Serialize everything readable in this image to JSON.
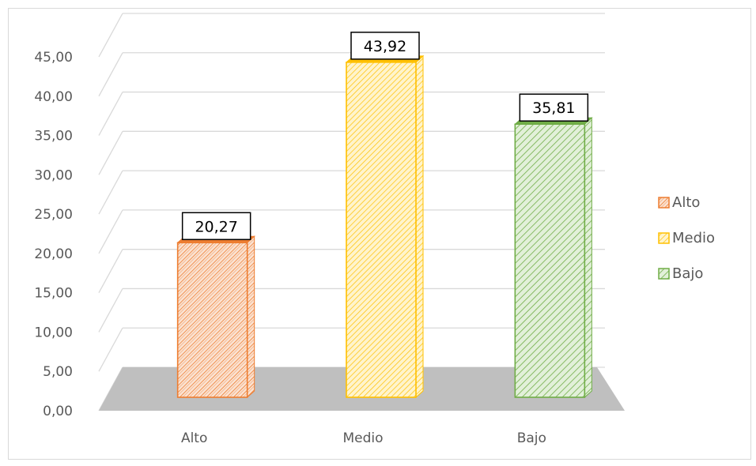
{
  "chart_data": {
    "type": "bar",
    "title": "",
    "xlabel": "",
    "ylabel": "",
    "categories": [
      "Alto",
      "Medio",
      "Bajo"
    ],
    "values": [
      20.27,
      43.92,
      35.81
    ],
    "data_labels": [
      "20,27",
      "43,92",
      "35,81"
    ],
    "ylim": [
      0,
      45
    ],
    "y_ticks": [
      "0,00",
      "5,00",
      "10,00",
      "15,00",
      "20,00",
      "25,00",
      "30,00",
      "35,00",
      "40,00",
      "45,00"
    ],
    "grid": true,
    "perspective": "3d-floor",
    "legend": {
      "position": "right",
      "entries": [
        "Alto",
        "Medio",
        "Bajo"
      ]
    },
    "colors": {
      "Alto": {
        "fill": "#f4b183",
        "stroke": "#ed7d31",
        "side": "#c55a11"
      },
      "Medio": {
        "fill": "#ffe699",
        "stroke": "#ffc000",
        "side": "#bf8f00"
      },
      "Bajo": {
        "fill": "#c5e0b4",
        "stroke": "#70ad47",
        "side": "#375623"
      },
      "floor": "#bfbfbf",
      "grid": "#d9d9d9"
    }
  }
}
